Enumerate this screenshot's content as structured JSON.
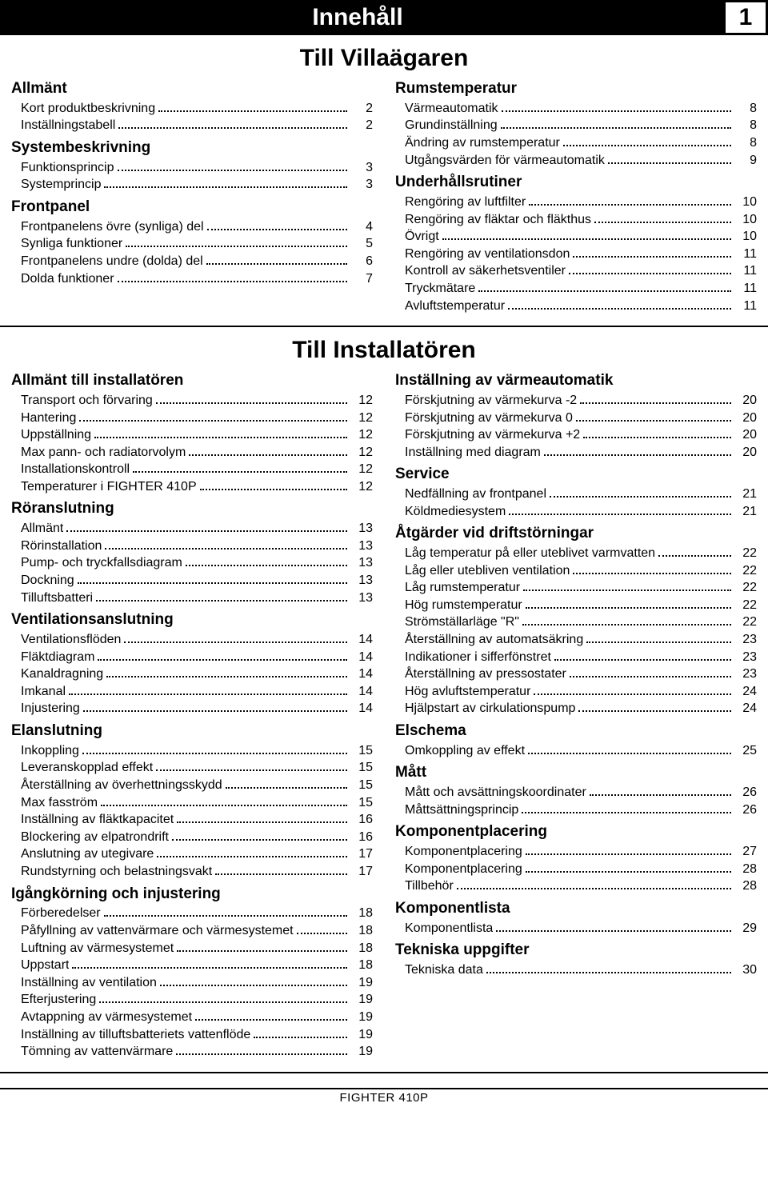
{
  "header": {
    "title": "Innehåll",
    "page_number": "1"
  },
  "subtitle1": "Till Villaägaren",
  "subtitle2": "Till Installatören",
  "footer": "FIGHTER 410P",
  "villa_left": [
    {
      "type": "group",
      "text": "Allmänt"
    },
    {
      "type": "item",
      "text": "Kort produktbeskrivning",
      "page": "2"
    },
    {
      "type": "item",
      "text": "Inställningstabell",
      "page": "2"
    },
    {
      "type": "group",
      "text": "Systembeskrivning"
    },
    {
      "type": "item",
      "text": "Funktionsprincip",
      "page": "3"
    },
    {
      "type": "item",
      "text": "Systemprincip",
      "page": "3"
    },
    {
      "type": "group",
      "text": "Frontpanel"
    },
    {
      "type": "item",
      "text": "Frontpanelens övre (synliga) del",
      "page": "4"
    },
    {
      "type": "item",
      "text": "Synliga funktioner",
      "page": "5"
    },
    {
      "type": "item",
      "text": "Frontpanelens undre (dolda) del",
      "page": "6"
    },
    {
      "type": "item",
      "text": "Dolda funktioner",
      "page": "7"
    }
  ],
  "villa_right": [
    {
      "type": "group",
      "text": "Rumstemperatur"
    },
    {
      "type": "item",
      "text": "Värmeautomatik",
      "page": "8"
    },
    {
      "type": "item",
      "text": "Grundinställning",
      "page": "8"
    },
    {
      "type": "item",
      "text": "Ändring av rumstemperatur",
      "page": "8"
    },
    {
      "type": "item",
      "text": "Utgångsvärden för värmeautomatik",
      "page": "9"
    },
    {
      "type": "group",
      "text": "Underhållsrutiner"
    },
    {
      "type": "item",
      "text": "Rengöring av luftfilter",
      "page": "10"
    },
    {
      "type": "item",
      "text": "Rengöring av fläktar och fläkthus",
      "page": "10"
    },
    {
      "type": "item",
      "text": "Övrigt",
      "page": "10"
    },
    {
      "type": "item",
      "text": "Rengöring av ventilationsdon",
      "page": "11"
    },
    {
      "type": "item",
      "text": "Kontroll av säkerhetsventiler",
      "page": "11"
    },
    {
      "type": "item",
      "text": "Tryckmätare",
      "page": "11"
    },
    {
      "type": "item",
      "text": "Avluftstemperatur",
      "page": "11"
    }
  ],
  "inst_left": [
    {
      "type": "group",
      "text": "Allmänt till installatören"
    },
    {
      "type": "item",
      "text": "Transport och förvaring",
      "page": "12"
    },
    {
      "type": "item",
      "text": "Hantering",
      "page": "12"
    },
    {
      "type": "item",
      "text": "Uppställning",
      "page": "12"
    },
    {
      "type": "item",
      "text": "Max pann- och radiatorvolym",
      "page": "12"
    },
    {
      "type": "item",
      "text": "Installationskontroll",
      "page": "12"
    },
    {
      "type": "item",
      "text": "Temperaturer i FIGHTER 410P",
      "page": "12"
    },
    {
      "type": "group",
      "text": "Röranslutning"
    },
    {
      "type": "item",
      "text": "Allmänt",
      "page": "13"
    },
    {
      "type": "item",
      "text": "Rörinstallation",
      "page": "13"
    },
    {
      "type": "item",
      "text": "Pump- och tryckfallsdiagram",
      "page": "13"
    },
    {
      "type": "item",
      "text": "Dockning",
      "page": "13"
    },
    {
      "type": "item",
      "text": "Tilluftsbatteri",
      "page": "13"
    },
    {
      "type": "group",
      "text": "Ventilationsanslutning"
    },
    {
      "type": "item",
      "text": "Ventilationsflöden",
      "page": "14"
    },
    {
      "type": "item",
      "text": "Fläktdiagram",
      "page": "14"
    },
    {
      "type": "item",
      "text": "Kanaldragning",
      "page": "14"
    },
    {
      "type": "item",
      "text": "Imkanal",
      "page": "14"
    },
    {
      "type": "item",
      "text": "Injustering",
      "page": "14"
    },
    {
      "type": "group",
      "text": "Elanslutning"
    },
    {
      "type": "item",
      "text": "Inkoppling",
      "page": "15"
    },
    {
      "type": "item",
      "text": "Leveranskopplad effekt",
      "page": "15"
    },
    {
      "type": "item",
      "text": "Återställning av överhettningsskydd",
      "page": "15"
    },
    {
      "type": "item",
      "text": "Max fasström",
      "page": "15"
    },
    {
      "type": "item",
      "text": "Inställning av fläktkapacitet",
      "page": "16"
    },
    {
      "type": "item",
      "text": "Blockering av elpatrondrift",
      "page": "16"
    },
    {
      "type": "item",
      "text": "Anslutning av utegivare",
      "page": "17"
    },
    {
      "type": "item",
      "text": "Rundstyrning och belastningsvakt",
      "page": "17"
    },
    {
      "type": "group",
      "text": "Igångkörning och injustering"
    },
    {
      "type": "item",
      "text": "Förberedelser",
      "page": "18"
    },
    {
      "type": "item",
      "text": "Påfyllning av vattenvärmare och värmesystemet",
      "page": "18"
    },
    {
      "type": "item",
      "text": "Luftning av värmesystemet",
      "page": "18"
    },
    {
      "type": "item",
      "text": "Uppstart",
      "page": "18"
    },
    {
      "type": "item",
      "text": "Inställning av ventilation",
      "page": "19"
    },
    {
      "type": "item",
      "text": "Efterjustering",
      "page": "19"
    },
    {
      "type": "item",
      "text": "Avtappning av värmesystemet",
      "page": "19"
    },
    {
      "type": "item",
      "text": "Inställning av tilluftsbatteriets vattenflöde",
      "page": "19"
    },
    {
      "type": "item",
      "text": "Tömning av vattenvärmare",
      "page": "19"
    }
  ],
  "inst_right": [
    {
      "type": "group",
      "text": "Inställning av värmeautomatik"
    },
    {
      "type": "item",
      "text": "Förskjutning av värmekurva -2",
      "page": "20"
    },
    {
      "type": "item",
      "text": "Förskjutning av värmekurva 0",
      "page": "20"
    },
    {
      "type": "item",
      "text": "Förskjutning av värmekurva +2",
      "page": "20"
    },
    {
      "type": "item",
      "text": "Inställning med diagram",
      "page": "20"
    },
    {
      "type": "group",
      "text": "Service"
    },
    {
      "type": "item",
      "text": "Nedfällning av frontpanel",
      "page": "21"
    },
    {
      "type": "item",
      "text": "Köldmediesystem",
      "page": "21"
    },
    {
      "type": "group",
      "text": "Åtgärder vid driftstörningar"
    },
    {
      "type": "item",
      "text": "Låg temperatur på eller uteblivet varmvatten",
      "page": "22"
    },
    {
      "type": "item",
      "text": "Låg eller utebliven ventilation",
      "page": "22"
    },
    {
      "type": "item",
      "text": "Låg rumstemperatur",
      "page": "22"
    },
    {
      "type": "item",
      "text": "Hög rumstemperatur",
      "page": "22"
    },
    {
      "type": "item",
      "text": "Strömställarläge \"R\"",
      "page": "22"
    },
    {
      "type": "item",
      "text": "Återställning av automatsäkring",
      "page": "23"
    },
    {
      "type": "item",
      "text": "Indikationer i sifferfönstret",
      "page": "23"
    },
    {
      "type": "item",
      "text": "Återställning av pressostater",
      "page": "23"
    },
    {
      "type": "item",
      "text": "Hög avluftstemperatur",
      "page": "24"
    },
    {
      "type": "item",
      "text": "Hjälpstart av cirkulationspump",
      "page": "24"
    },
    {
      "type": "group",
      "text": "Elschema"
    },
    {
      "type": "item",
      "text": "Omkoppling av effekt",
      "page": "25"
    },
    {
      "type": "group",
      "text": "Mått"
    },
    {
      "type": "item",
      "text": "Mått och avsättningskoordinater",
      "page": "26"
    },
    {
      "type": "item",
      "text": "Måttsättningsprincip",
      "page": "26"
    },
    {
      "type": "group",
      "text": "Komponentplacering"
    },
    {
      "type": "item",
      "text": "Komponentplacering",
      "page": "27"
    },
    {
      "type": "item",
      "text": "Komponentplacering",
      "page": "28"
    },
    {
      "type": "item",
      "text": "Tillbehör",
      "page": "28"
    },
    {
      "type": "group",
      "text": "Komponentlista"
    },
    {
      "type": "item",
      "text": "Komponentlista",
      "page": "29"
    },
    {
      "type": "group",
      "text": "Tekniska uppgifter"
    },
    {
      "type": "item",
      "text": "Tekniska data",
      "page": "30"
    }
  ]
}
